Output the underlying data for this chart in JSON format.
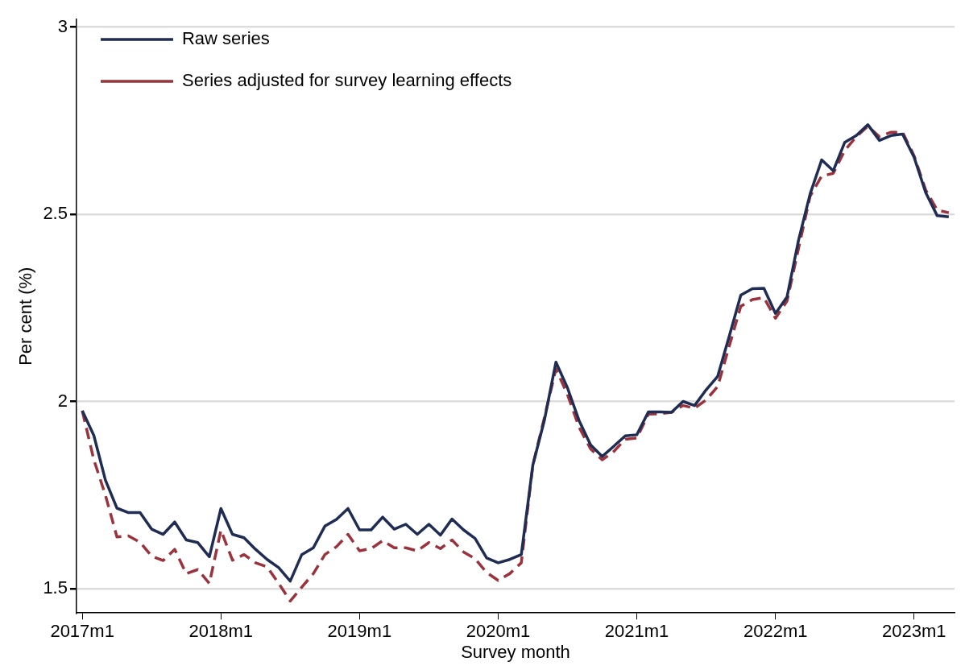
{
  "chart_data": {
    "type": "line",
    "xlabel": "Survey month",
    "ylabel": "Per cent (%)",
    "categories": [
      "2017m1",
      null,
      null,
      null,
      null,
      null,
      null,
      null,
      null,
      null,
      null,
      null,
      "2018m1",
      null,
      null,
      null,
      null,
      null,
      null,
      null,
      null,
      null,
      null,
      null,
      "2019m1",
      null,
      null,
      null,
      null,
      null,
      null,
      null,
      null,
      null,
      null,
      null,
      "2020m1",
      null,
      null,
      null,
      null,
      null,
      null,
      null,
      null,
      null,
      null,
      null,
      "2021m1",
      null,
      null,
      null,
      null,
      null,
      null,
      null,
      null,
      null,
      null,
      null,
      "2022m1",
      null,
      null,
      null,
      null,
      null,
      null,
      null,
      null,
      null,
      null,
      null,
      "2023m1",
      null,
      null,
      null
    ],
    "series": [
      {
        "name": "Raw series",
        "color": "#1f2d55",
        "line_style": "solid",
        "values": [
          1.975,
          1.909,
          1.79,
          1.715,
          1.703,
          1.703,
          1.659,
          1.645,
          1.678,
          1.63,
          1.623,
          1.585,
          1.714,
          1.645,
          1.636,
          1.605,
          1.578,
          1.556,
          1.52,
          1.591,
          1.609,
          1.667,
          1.685,
          1.714,
          1.657,
          1.657,
          1.691,
          1.659,
          1.672,
          1.645,
          1.672,
          1.643,
          1.686,
          1.657,
          1.634,
          1.582,
          1.569,
          1.578,
          1.591,
          1.83,
          1.95,
          2.105,
          2.036,
          1.949,
          1.884,
          1.853,
          1.88,
          1.908,
          1.911,
          1.972,
          1.972,
          1.971,
          2.0,
          1.989,
          2.031,
          2.067,
          2.174,
          2.284,
          2.301,
          2.302,
          2.235,
          2.279,
          2.431,
          2.554,
          2.645,
          2.616,
          2.692,
          2.71,
          2.739,
          2.697,
          2.71,
          2.714,
          2.652,
          2.558,
          2.496,
          2.493
        ]
      },
      {
        "name": "Series adjusted for survey learning effects",
        "color": "#9b333d",
        "line_style": "dashed",
        "values": [
          1.975,
          1.844,
          1.75,
          1.638,
          1.641,
          1.624,
          1.587,
          1.575,
          1.605,
          1.54,
          1.551,
          1.514,
          1.656,
          1.576,
          1.591,
          1.569,
          1.558,
          1.514,
          1.467,
          1.504,
          1.54,
          1.591,
          1.612,
          1.645,
          1.601,
          1.607,
          1.628,
          1.609,
          1.609,
          1.601,
          1.623,
          1.607,
          1.63,
          1.598,
          1.58,
          1.543,
          1.522,
          1.54,
          1.569,
          1.83,
          1.957,
          2.087,
          2.018,
          1.931,
          1.873,
          1.844,
          1.866,
          1.899,
          1.902,
          1.966,
          1.967,
          1.971,
          1.989,
          1.982,
          2.004,
          2.04,
          2.148,
          2.254,
          2.272,
          2.277,
          2.222,
          2.268,
          2.409,
          2.548,
          2.602,
          2.609,
          2.67,
          2.707,
          2.735,
          2.707,
          2.719,
          2.719,
          2.656,
          2.565,
          2.511,
          2.504
        ]
      }
    ],
    "ylim": [
      1.435,
      3.02
    ],
    "yticks": [
      1.5,
      2,
      2.5,
      3
    ],
    "grid": "y",
    "legend": "top left"
  }
}
